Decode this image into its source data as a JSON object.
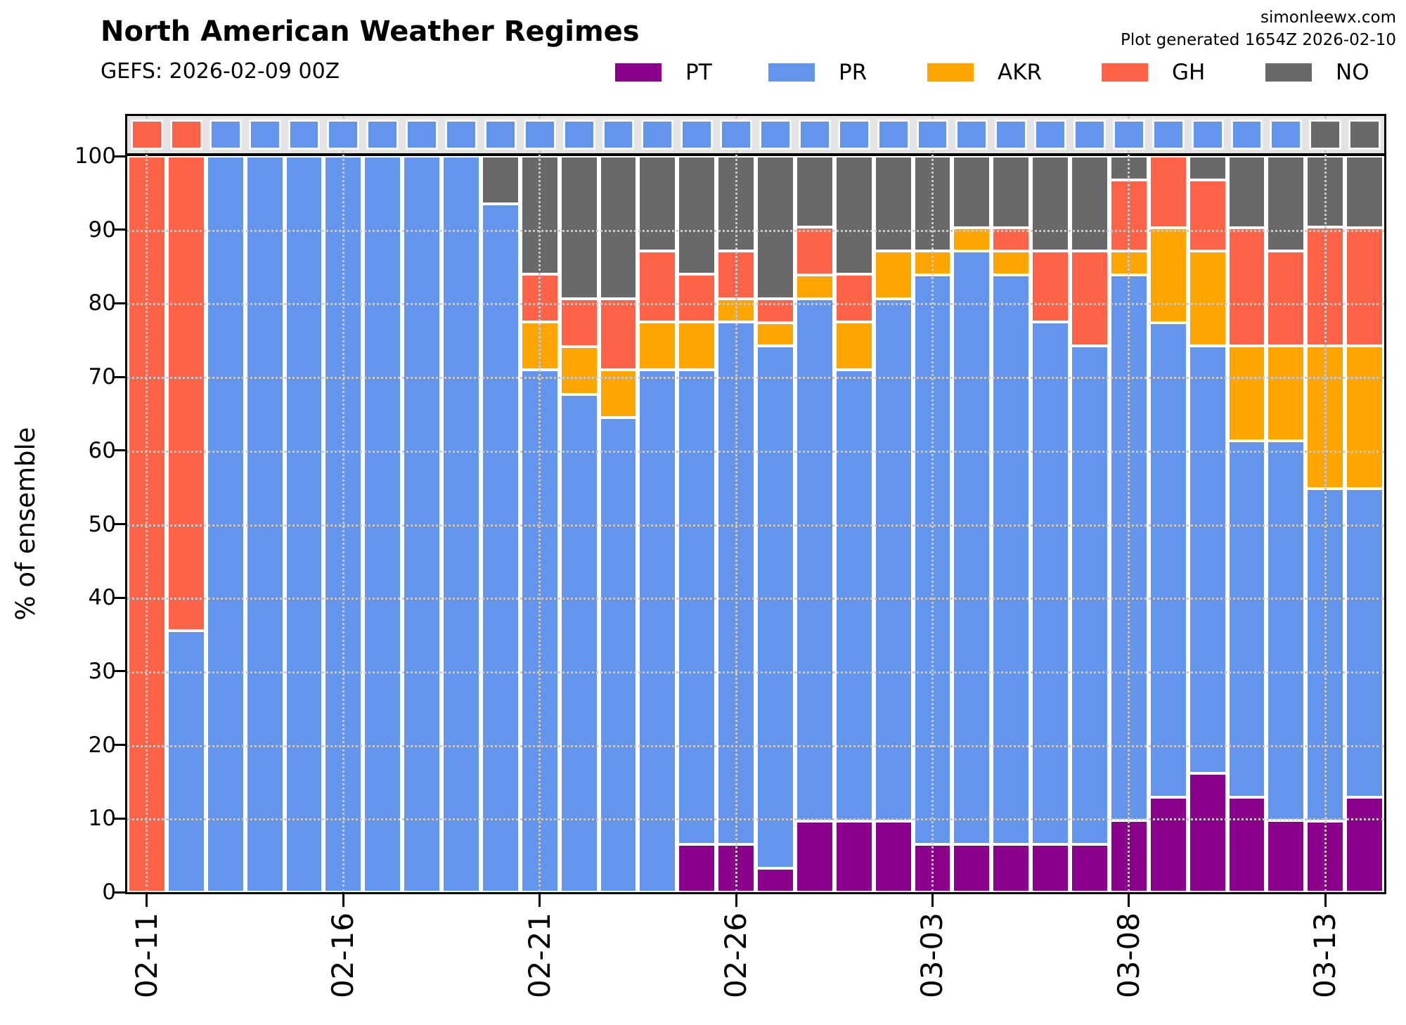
{
  "header": {
    "title": "North American Weather Regimes",
    "subtitle": "GEFS: 2026-02-09 00Z",
    "credit": "simonleewx.com",
    "generated": "Plot generated 1654Z 2026-02-10"
  },
  "legend": {
    "items": [
      {
        "label": "PT",
        "color": "#8B008B"
      },
      {
        "label": "PR",
        "color": "#6495ED"
      },
      {
        "label": "AKR",
        "color": "#FFA500"
      },
      {
        "label": "GH",
        "color": "#FF6347"
      },
      {
        "label": "NO",
        "color": "#696969"
      }
    ]
  },
  "axes": {
    "ylabel": "% of ensemble",
    "yticks": [
      0,
      10,
      20,
      30,
      40,
      50,
      60,
      70,
      80,
      90,
      100
    ],
    "xtick_labels": [
      "02-11",
      "02-16",
      "02-21",
      "02-26",
      "03-03",
      "03-08",
      "03-13"
    ],
    "xtick_indices": [
      0,
      5,
      10,
      15,
      20,
      25,
      30
    ]
  },
  "chart_data": {
    "type": "bar",
    "stacked": true,
    "title": "North American Weather Regimes",
    "ylabel": "% of ensemble",
    "ylim": [
      0,
      100
    ],
    "grid": true,
    "legend_position": "top",
    "stacking_order_bottom_to_top": [
      "PT",
      "PR",
      "AKR",
      "GH",
      "NO"
    ],
    "categories": [
      "02-11",
      "02-12",
      "02-13",
      "02-14",
      "02-15",
      "02-16",
      "02-17",
      "02-18",
      "02-19",
      "02-20",
      "02-21",
      "02-22",
      "02-23",
      "02-24",
      "02-25",
      "02-26",
      "02-27",
      "02-28",
      "03-01",
      "03-02",
      "03-03",
      "03-04",
      "03-05",
      "03-06",
      "03-07",
      "03-08",
      "03-09",
      "03-10",
      "03-11",
      "03-12",
      "03-13",
      "03-14"
    ],
    "series": [
      {
        "name": "PT",
        "color": "#8B008B",
        "values": [
          0,
          0,
          0,
          0,
          0,
          0,
          0,
          0,
          0,
          0,
          0,
          0,
          0,
          0,
          6.5,
          6.5,
          3.2,
          9.7,
          9.7,
          9.7,
          6.5,
          6.5,
          6.5,
          6.5,
          6.5,
          9.7,
          12.9,
          16.1,
          12.9,
          9.7,
          9.7,
          12.9
        ]
      },
      {
        "name": "PR",
        "color": "#6495ED",
        "values": [
          0,
          35.5,
          100,
          100,
          100,
          100,
          100,
          100,
          100,
          93.5,
          71,
          67.7,
          64.5,
          71,
          64.5,
          71,
          71,
          71,
          61.3,
          71,
          77.4,
          80.6,
          77.4,
          71,
          67.7,
          74.2,
          64.5,
          58.1,
          48.4,
          51.6,
          45.2,
          41.9
        ]
      },
      {
        "name": "AKR",
        "color": "#FFA500",
        "values": [
          0,
          0,
          0,
          0,
          0,
          0,
          0,
          0,
          0,
          0,
          6.5,
          6.5,
          6.5,
          6.5,
          6.5,
          3.2,
          3.2,
          3.2,
          6.5,
          6.5,
          3.2,
          3.2,
          3.2,
          0,
          0,
          3.2,
          12.9,
          12.9,
          12.9,
          12.9,
          19.4,
          19.4
        ]
      },
      {
        "name": "GH",
        "color": "#FF6347",
        "values": [
          100,
          64.5,
          0,
          0,
          0,
          0,
          0,
          0,
          0,
          0,
          6.5,
          6.5,
          9.7,
          9.7,
          6.5,
          6.5,
          3.2,
          6.5,
          6.5,
          0,
          0,
          0,
          3.2,
          9.7,
          12.9,
          9.7,
          9.7,
          9.7,
          16.1,
          12.9,
          16.1,
          16.1
        ]
      },
      {
        "name": "NO",
        "color": "#696969",
        "values": [
          0,
          0,
          0,
          0,
          0,
          0,
          0,
          0,
          0,
          6.5,
          16.1,
          19.4,
          19.4,
          12.9,
          16.1,
          12.9,
          19.4,
          9.7,
          16.1,
          12.9,
          12.9,
          9.7,
          9.7,
          12.9,
          12.9,
          3.2,
          0,
          3.2,
          9.7,
          12.9,
          9.7,
          9.7
        ]
      }
    ],
    "top_strip": {
      "description": "regime tile per day above 100% line",
      "values": [
        "GH",
        "GH",
        "PR",
        "PR",
        "PR",
        "PR",
        "PR",
        "PR",
        "PR",
        "PR",
        "PR",
        "PR",
        "PR",
        "PR",
        "PR",
        "PR",
        "PR",
        "PR",
        "PR",
        "PR",
        "PR",
        "PR",
        "PR",
        "PR",
        "PR",
        "PR",
        "PR",
        "PR",
        "PR",
        "PR",
        "NO",
        "NO"
      ]
    }
  }
}
